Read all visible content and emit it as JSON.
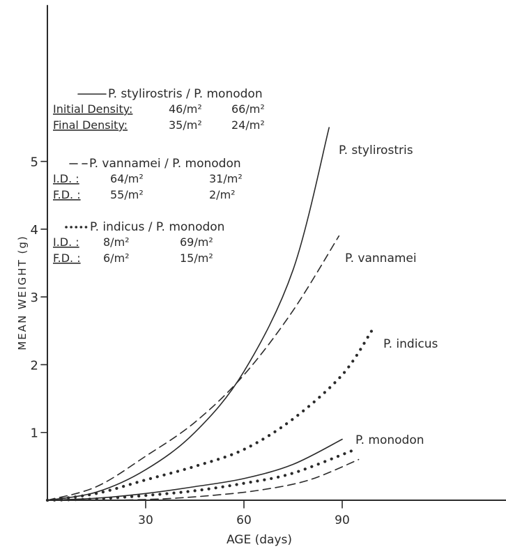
{
  "chart_data": {
    "type": "line",
    "xlabel": "AGE (days)",
    "ylabel": "MEAN WEIGHT (g)",
    "xlim": [
      0,
      140
    ],
    "ylim": [
      0,
      7.3
    ],
    "x_ticks": [
      30,
      60,
      90
    ],
    "y_ticks": [
      1,
      2,
      3,
      4,
      5
    ],
    "grid": false,
    "legend": {
      "groups": [
        {
          "title": "P. stylirostris / P. monodon",
          "style": "solid",
          "rows": [
            {
              "label": "Initial Density:",
              "a": "46/m²",
              "b": "66/m²"
            },
            {
              "label": "Final Density:",
              "a": "35/m²",
              "b": "24/m²"
            }
          ]
        },
        {
          "title": "P. vannamei / P. monodon",
          "style": "dashed",
          "rows": [
            {
              "label": "I.D. :",
              "a": "64/m²",
              "b": "31/m²"
            },
            {
              "label": "F.D. :",
              "a": "55/m²",
              "b": "2/m²"
            }
          ]
        },
        {
          "title": "P. indicus / P. monodon",
          "style": "dotted",
          "rows": [
            {
              "label": "I.D. :",
              "a": "8/m²",
              "b": "69/m²"
            },
            {
              "label": "F.D. :",
              "a": "6/m²",
              "b": "15/m²"
            }
          ]
        }
      ]
    },
    "series": [
      {
        "name": "P. stylirostris",
        "style": "solid",
        "x": [
          0,
          15,
          30,
          45,
          60,
          75,
          86
        ],
        "y": [
          0,
          0.12,
          0.45,
          1.0,
          1.9,
          3.4,
          5.5
        ]
      },
      {
        "name": "P. vannamei",
        "style": "dashed",
        "x": [
          0,
          15,
          30,
          45,
          60,
          75,
          89
        ],
        "y": [
          0,
          0.2,
          0.65,
          1.15,
          1.85,
          2.8,
          3.9
        ]
      },
      {
        "name": "P. indicus",
        "style": "dotted",
        "x": [
          0,
          15,
          30,
          45,
          60,
          75,
          90,
          99
        ],
        "y": [
          0,
          0.1,
          0.3,
          0.5,
          0.75,
          1.2,
          1.85,
          2.5
        ]
      },
      {
        "name": "P. monodon",
        "style": "solid",
        "x": [
          0,
          15,
          30,
          45,
          60,
          75,
          90
        ],
        "y": [
          0,
          0.03,
          0.1,
          0.2,
          0.32,
          0.53,
          0.9
        ]
      },
      {
        "style": "dotted",
        "x": [
          0,
          15,
          30,
          45,
          60,
          75,
          94
        ],
        "y": [
          0,
          0.02,
          0.07,
          0.14,
          0.25,
          0.4,
          0.75
        ]
      },
      {
        "style": "dashed",
        "x": [
          20,
          35,
          50,
          65,
          80,
          95
        ],
        "y": [
          0,
          0.02,
          0.07,
          0.15,
          0.3,
          0.6
        ]
      }
    ]
  }
}
